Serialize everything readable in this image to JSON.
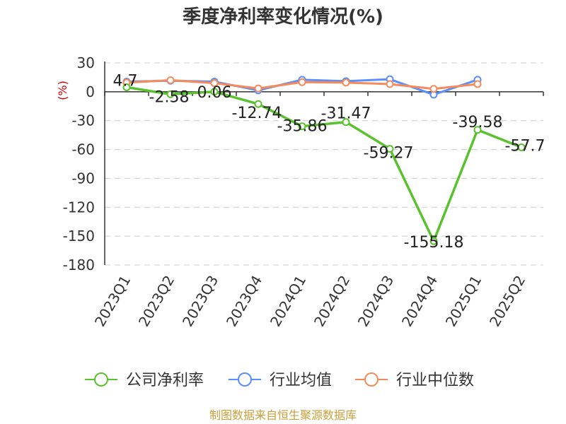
{
  "chart_data": {
    "type": "line",
    "title": "季度净利率变化情况(%)",
    "ylabel": "(%)",
    "categories": [
      "2023Q1",
      "2023Q2",
      "2023Q3",
      "2023Q4",
      "2024Q1",
      "2024Q2",
      "2024Q3",
      "2024Q4",
      "2025Q1",
      "2025Q2"
    ],
    "ylim": [
      -180,
      30
    ],
    "yticks": [
      30,
      0,
      -30,
      -60,
      -90,
      -120,
      -150,
      -180
    ],
    "grid": true,
    "legend_position": "bottom",
    "series": [
      {
        "name": "公司净利率",
        "color": "#5ac12f",
        "values": [
          4.7,
          -2.58,
          0.06,
          -12.74,
          -35.86,
          -31.47,
          -59.27,
          -155.18,
          -39.58,
          -57.7
        ],
        "labels": [
          "4.7",
          "-2.58",
          "0.06",
          "-12.74",
          "-35.86",
          "-31.47",
          "-59.27",
          "-155.18",
          "-39.58",
          "-57.7"
        ]
      },
      {
        "name": "行业均值",
        "color": "#5b8ff9",
        "values": [
          10.5,
          11.5,
          10.5,
          1.5,
          12.5,
          11,
          13,
          -3,
          12.5,
          null
        ]
      },
      {
        "name": "行业中位数",
        "color": "#f58b5b",
        "values": [
          9.5,
          12,
          9,
          3.5,
          10,
          9.5,
          8,
          3,
          8,
          null
        ]
      }
    ]
  },
  "footer": "制图数据来自恒生聚源数据库"
}
